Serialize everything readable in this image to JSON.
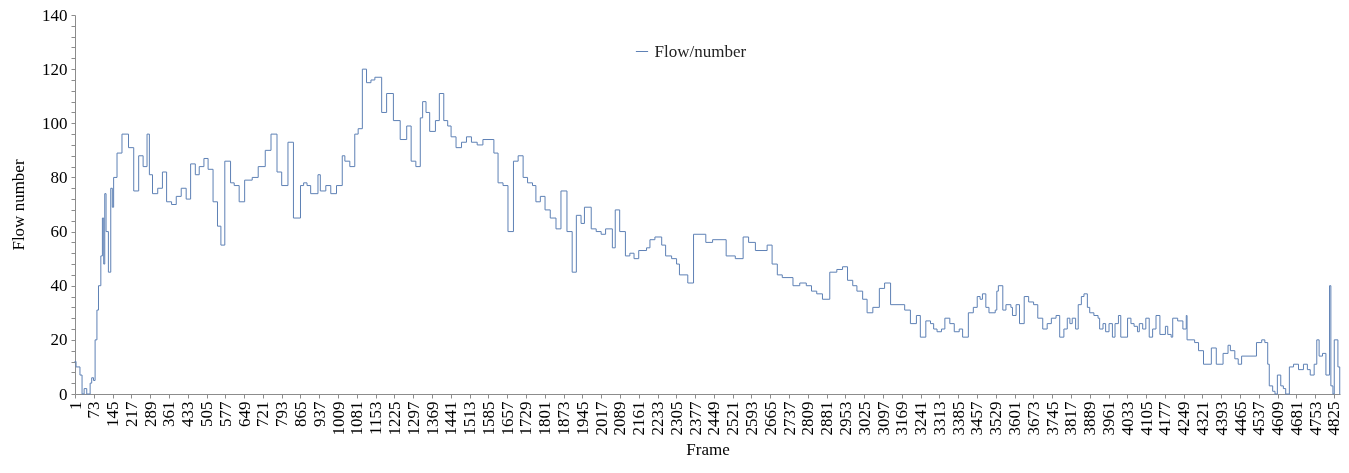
{
  "chart_data": {
    "type": "step",
    "xlabel": "Frame",
    "ylabel": "Flow number",
    "legend": "top",
    "line_style": "solid",
    "x": [
      1,
      5,
      20,
      28,
      36,
      46,
      59,
      65,
      72,
      78,
      85,
      91,
      100,
      106,
      111,
      115,
      120,
      129,
      138,
      144,
      149,
      162,
      181,
      206,
      226,
      245,
      262,
      277,
      286,
      298,
      318,
      336,
      352,
      371,
      389,
      408,
      427,
      444,
      462,
      477,
      495,
      511,
      530,
      547,
      560,
      575,
      597,
      611,
      630,
      651,
      680,
      703,
      730,
      752,
      775,
      793,
      817,
      838,
      865,
      877,
      890,
      904,
      932,
      941,
      962,
      981,
      1003,
      1025,
      1035,
      1054,
      1073,
      1086,
      1102,
      1118,
      1135,
      1150,
      1176,
      1195,
      1221,
      1247,
      1272,
      1289,
      1307,
      1324,
      1333,
      1346,
      1360,
      1382,
      1397,
      1414,
      1429,
      1442,
      1461,
      1482,
      1501,
      1520,
      1542,
      1564,
      1606,
      1622,
      1641,
      1660,
      1681,
      1699,
      1718,
      1735,
      1754,
      1767,
      1784,
      1802,
      1822,
      1844,
      1863,
      1886,
      1906,
      1922,
      1940,
      1953,
      1979,
      1998,
      2017,
      2034,
      2060,
      2071,
      2088,
      2110,
      2127,
      2143,
      2161,
      2191,
      2204,
      2223,
      2249,
      2264,
      2287,
      2306,
      2317,
      2349,
      2371,
      2418,
      2444,
      2496,
      2531,
      2561,
      2582,
      2608,
      2653,
      2672,
      2692,
      2711,
      2752,
      2778,
      2803,
      2823,
      2843,
      2865,
      2893,
      2920,
      2942,
      2961,
      2981,
      2997,
      3019,
      3036,
      3058,
      3083,
      3103,
      3126,
      3180,
      3202,
      3225,
      3240,
      3261,
      3279,
      3291,
      3304,
      3321,
      3334,
      3353,
      3370,
      3389,
      3402,
      3424,
      3443,
      3458,
      3469,
      3478,
      3491,
      3503,
      3527,
      3533,
      3539,
      3556,
      3568,
      3587,
      3593,
      3607,
      3620,
      3638,
      3655,
      3674,
      3690,
      3709,
      3726,
      3742,
      3760,
      3774,
      3790,
      3803,
      3813,
      3822,
      3835,
      3845,
      3857,
      3867,
      3880,
      3889,
      3905,
      3921,
      3927,
      3940,
      3950,
      3963,
      3976,
      3986,
      3999,
      4008,
      4034,
      4047,
      4059,
      4072,
      4079,
      4092,
      4104,
      4117,
      4130,
      4143,
      4158,
      4179,
      4188,
      4201,
      4207,
      4226,
      4246,
      4259,
      4262,
      4291,
      4306,
      4325,
      4355,
      4374,
      4400,
      4419,
      4428,
      4445,
      4458,
      4471,
      4528,
      4548,
      4560,
      4571,
      4577,
      4590,
      4599,
      4608,
      4621,
      4631,
      4640,
      4654,
      4670,
      4689,
      4708,
      4723,
      4734,
      4749,
      4759,
      4768,
      4781,
      4794,
      4808,
      4813,
      4821,
      4826,
      4840,
      4847
    ],
    "series": [
      {
        "name": "Flow/number",
        "color": "#5e81b5",
        "values": [
          12,
          10,
          7,
          0,
          2,
          0,
          4,
          6,
          5,
          20,
          31,
          40,
          51,
          65,
          48,
          74,
          60,
          45,
          76,
          69,
          80,
          89,
          96,
          91,
          75,
          88,
          84,
          96,
          81,
          74,
          76,
          82,
          71,
          70,
          73,
          76,
          72,
          85,
          81,
          84,
          87,
          83,
          71,
          62,
          55,
          86,
          78,
          77,
          71,
          79,
          80,
          84,
          90,
          96,
          82,
          77,
          93,
          65,
          77,
          78,
          77,
          74,
          81,
          75,
          77,
          74,
          77,
          88,
          86,
          84,
          96,
          98,
          120,
          115,
          116,
          117,
          104,
          111,
          101,
          94,
          99,
          86,
          84,
          102,
          108,
          104,
          97,
          101,
          111,
          101,
          99,
          95,
          91,
          93,
          95,
          93,
          92,
          94,
          89,
          78,
          77,
          60,
          86,
          88,
          80,
          78,
          77,
          71,
          73,
          68,
          65,
          61,
          75,
          60,
          45,
          66,
          63,
          69,
          61,
          60,
          59,
          61,
          54,
          68,
          60,
          51,
          52,
          50,
          53,
          54,
          57,
          58,
          55,
          51,
          50,
          48,
          44,
          41,
          59,
          56,
          57,
          51,
          50,
          58,
          56,
          53,
          55,
          48,
          44,
          43,
          40,
          41,
          40,
          38,
          37,
          35,
          45,
          46,
          47,
          42,
          40,
          38,
          35,
          30,
          32,
          39,
          41,
          33,
          31,
          26,
          29,
          21,
          27,
          26,
          24,
          23,
          24,
          28,
          26,
          23,
          24,
          21,
          30,
          32,
          36,
          35,
          37,
          32,
          30,
          31,
          38,
          40,
          31,
          33,
          32,
          29,
          33,
          26,
          36,
          34,
          33,
          28,
          24,
          26,
          28,
          29,
          21,
          24,
          28,
          26,
          28,
          24,
          33,
          36,
          37,
          32,
          30,
          29,
          28,
          24,
          26,
          23,
          26,
          21,
          26,
          29,
          21,
          28,
          26,
          25,
          23,
          26,
          24,
          28,
          21,
          24,
          29,
          22,
          25,
          22,
          21,
          28,
          27,
          24,
          29,
          20,
          19,
          16,
          11,
          17,
          11,
          15,
          18,
          16,
          13,
          11,
          14,
          19,
          20,
          19,
          11,
          3,
          1,
          0,
          7,
          3,
          2,
          0,
          10,
          11,
          9,
          11,
          9,
          7,
          11,
          20,
          14,
          15,
          7,
          40,
          3,
          0,
          20,
          10,
          0
        ]
      }
    ],
    "xlim": [
      1,
      4848
    ],
    "xticks": [
      1,
      73,
      145,
      217,
      289,
      361,
      433,
      505,
      577,
      649,
      721,
      793,
      865,
      937,
      1009,
      1081,
      1153,
      1225,
      1297,
      1369,
      1441,
      1513,
      1585,
      1657,
      1729,
      1801,
      1873,
      1945,
      2017,
      2089,
      2161,
      2233,
      2305,
      2377,
      2449,
      2521,
      2593,
      2665,
      2737,
      2809,
      2881,
      2953,
      3025,
      3097,
      3169,
      3241,
      3313,
      3385,
      3457,
      3529,
      3601,
      3673,
      3745,
      3817,
      3889,
      3961,
      4033,
      4105,
      4177,
      4249,
      4321,
      4393,
      4465,
      4537,
      4609,
      4681,
      4753,
      4825
    ],
    "ylim": [
      0,
      140
    ],
    "yticks": [
      0,
      {
        "value": 4,
        "label": null
      },
      {
        "value": 8,
        "label": null
      },
      {
        "value": 12,
        "label": null
      },
      {
        "value": 16,
        "label": null
      },
      20,
      {
        "value": 24,
        "label": null
      },
      {
        "value": 28,
        "label": null
      },
      {
        "value": 32,
        "label": null
      },
      {
        "value": 36,
        "label": null
      },
      40,
      {
        "value": 44,
        "label": null
      },
      {
        "value": 48,
        "label": null
      },
      {
        "value": 52,
        "label": null
      },
      {
        "value": 56,
        "label": null
      },
      60,
      {
        "value": 64,
        "label": null
      },
      {
        "value": 68,
        "label": null
      },
      {
        "value": 72,
        "label": null
      },
      {
        "value": 76,
        "label": null
      },
      80,
      {
        "value": 84,
        "label": null
      },
      {
        "value": 88,
        "label": null
      },
      {
        "value": 92,
        "label": null
      },
      {
        "value": 96,
        "label": null
      },
      100,
      {
        "value": 104,
        "label": null
      },
      {
        "value": 108,
        "label": null
      },
      {
        "value": 112,
        "label": null
      },
      {
        "value": 116,
        "label": null
      },
      120,
      {
        "value": 124,
        "label": null
      },
      {
        "value": 128,
        "label": null
      },
      {
        "value": 132,
        "label": null
      },
      {
        "value": 136,
        "label": null
      },
      140
    ]
  }
}
